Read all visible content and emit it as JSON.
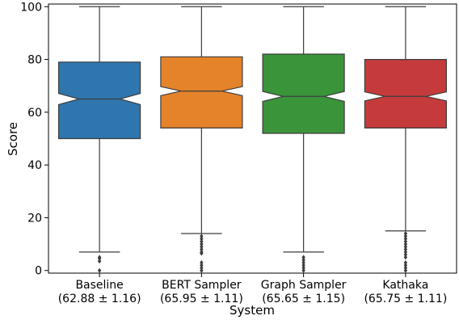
{
  "chart_data": {
    "type": "box",
    "notched": true,
    "xlabel": "System",
    "ylabel": "Score",
    "ylim": [
      -1,
      101
    ],
    "yticks": [
      0,
      20,
      40,
      60,
      80,
      100
    ],
    "grid": false,
    "categories": [
      {
        "label_line1": "Baseline",
        "label_line2": "(62.88 ± 1.16)"
      },
      {
        "label_line1": "BERT Sampler",
        "label_line2": "(65.95 ± 1.11)"
      },
      {
        "label_line1": "Graph Sampler",
        "label_line2": "(65.65 ± 1.15)"
      },
      {
        "label_line1": "Kathaka",
        "label_line2": "(65.75 ± 1.11)"
      }
    ],
    "boxes": [
      {
        "color": "#2f76ae",
        "whisker_low": 7,
        "q1": 50,
        "notch_low": 62.9,
        "median": 65,
        "notch_high": 67.1,
        "q3": 79,
        "whisker_high": 100,
        "outliers": [
          0,
          3.5,
          4.5,
          5
        ]
      },
      {
        "color": "#e5832b",
        "whisker_low": 14,
        "q1": 54,
        "notch_low": 66.3,
        "median": 68,
        "notch_high": 69.7,
        "q3": 81,
        "whisker_high": 100,
        "outliers": [
          0,
          1,
          2,
          3,
          6.5,
          7,
          8,
          9,
          10,
          11,
          12,
          13
        ]
      },
      {
        "color": "#3a943a",
        "whisker_low": 7,
        "q1": 52,
        "notch_low": 64.1,
        "median": 66,
        "notch_high": 67.9,
        "q3": 82,
        "whisker_high": 100,
        "outliers": [
          0,
          1,
          2,
          3,
          4,
          5
        ]
      },
      {
        "color": "#c53b3c",
        "whisker_low": 15,
        "q1": 54,
        "notch_low": 64.3,
        "median": 66,
        "notch_high": 67.7,
        "q3": 80,
        "whisker_high": 100,
        "outliers": [
          0,
          1,
          2,
          3,
          5,
          6,
          7,
          8,
          9,
          10,
          11,
          12,
          13,
          14
        ]
      }
    ]
  }
}
